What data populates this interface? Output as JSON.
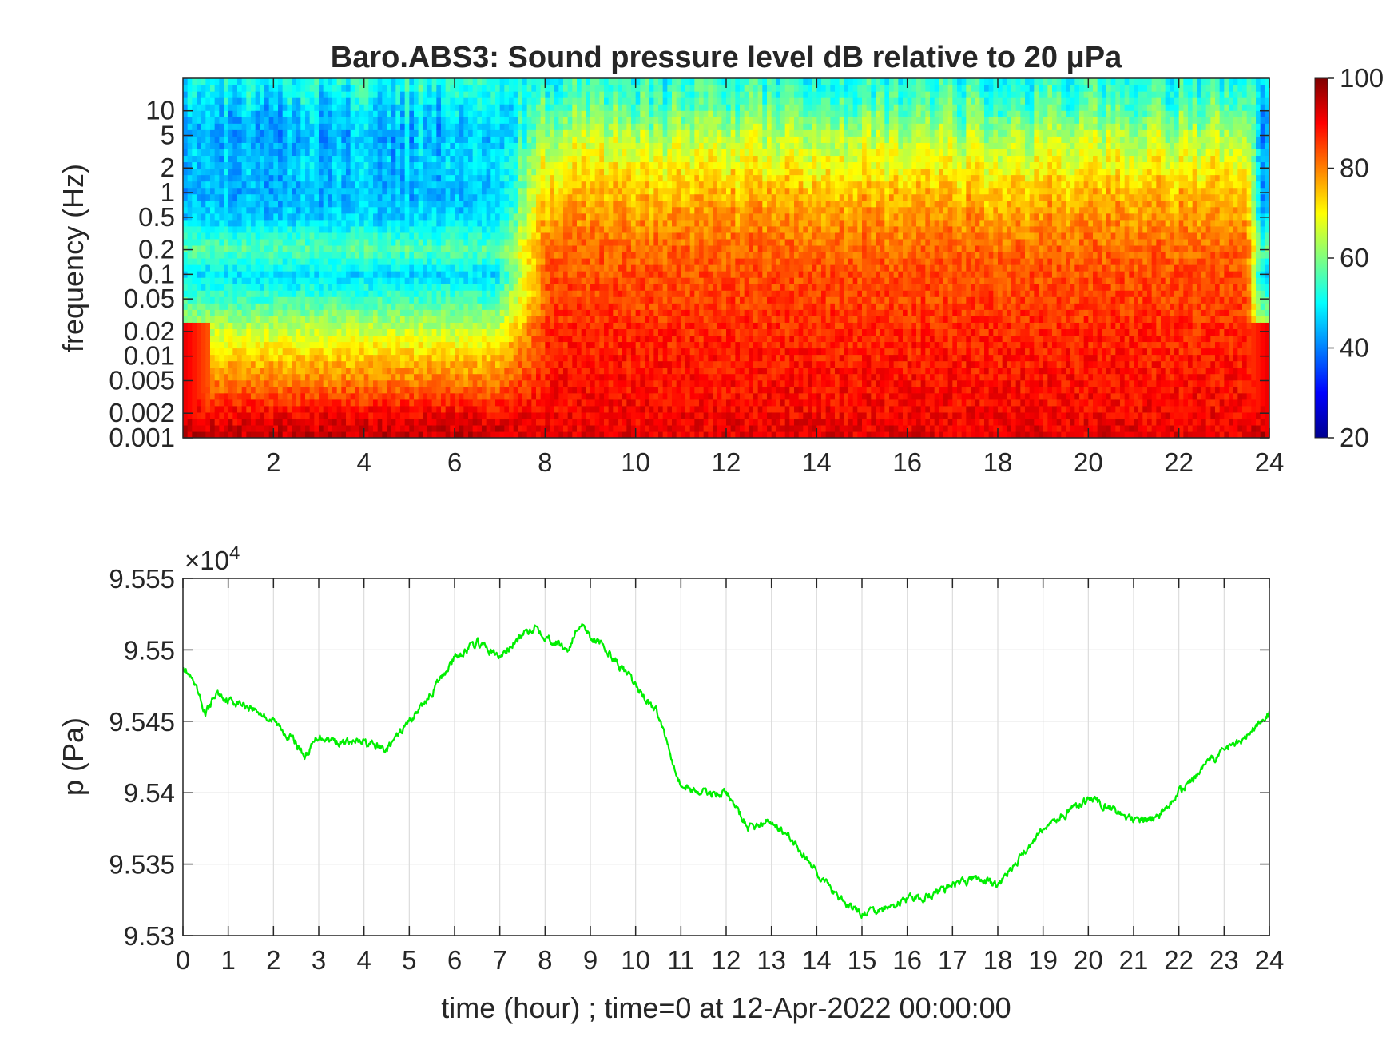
{
  "chart_data": [
    {
      "type": "heatmap",
      "title": "Baro.ABS3: Sound pressure level dB relative to 20 μPa",
      "ylabel": "frequency (Hz)",
      "xlabel": "",
      "x_tick_labels": [
        "2",
        "4",
        "6",
        "8",
        "10",
        "12",
        "14",
        "16",
        "18",
        "20",
        "22",
        "24"
      ],
      "x_ticks": [
        2,
        4,
        6,
        8,
        10,
        12,
        14,
        16,
        18,
        20,
        22,
        24
      ],
      "xlim": [
        0,
        24
      ],
      "y_scale": "log",
      "y_tick_labels": [
        "0.001",
        "0.002",
        "0.005",
        "0.01",
        "0.02",
        "0.05",
        "0.1",
        "0.2",
        "0.5",
        "1",
        "2",
        "5",
        "10"
      ],
      "y_ticks": [
        0.001,
        0.002,
        0.005,
        0.01,
        0.02,
        0.05,
        0.1,
        0.2,
        0.5,
        1,
        2,
        5,
        10
      ],
      "ylim": [
        0.001,
        25
      ],
      "colormap": "jet",
      "colorbar": {
        "tick_labels": [
          "20",
          "40",
          "60",
          "80",
          "100"
        ],
        "ticks": [
          20,
          40,
          60,
          80,
          100
        ],
        "range": [
          20,
          100
        ]
      },
      "level_profile": {
        "log10_freq": [
          -3.0,
          -2.7,
          -2.3,
          -2.0,
          -1.7,
          -1.3,
          -1.0,
          -0.7,
          -0.3,
          0.0,
          0.3,
          0.7,
          1.0,
          1.4
        ],
        "quiet_period_db": [
          95,
          90,
          80,
          74,
          66,
          55,
          47,
          57,
          47,
          44,
          46,
          44,
          47,
          52
        ],
        "active_period_db": [
          92,
          90,
          89,
          88,
          87,
          85,
          84,
          82,
          78,
          75,
          70,
          64,
          57,
          52
        ]
      },
      "active_period_hours": [
        7.5,
        23.5
      ]
    },
    {
      "type": "line",
      "xlabel": "time (hour) ; time=0 at 12-Apr-2022 00:00:00",
      "ylabel": "p (Pa)",
      "exponent_label": "×10",
      "exponent_power": "4",
      "xlim": [
        0,
        24
      ],
      "ylim": [
        95300,
        95550
      ],
      "x_ticks": [
        0,
        1,
        2,
        3,
        4,
        5,
        6,
        7,
        8,
        9,
        10,
        11,
        12,
        13,
        14,
        15,
        16,
        17,
        18,
        19,
        20,
        21,
        22,
        23,
        24
      ],
      "x_tick_labels": [
        "0",
        "1",
        "2",
        "3",
        "4",
        "5",
        "6",
        "7",
        "8",
        "9",
        "10",
        "11",
        "12",
        "13",
        "14",
        "15",
        "16",
        "17",
        "18",
        "19",
        "20",
        "21",
        "22",
        "23",
        "24"
      ],
      "y_ticks": [
        95300,
        95350,
        95400,
        95450,
        95500,
        95550
      ],
      "y_tick_labels": [
        "9.53",
        "9.535",
        "9.54",
        "9.545",
        "9.55",
        "9.555"
      ],
      "grid": true,
      "color": "#00ee00",
      "x": [
        0,
        0.25,
        0.5,
        0.75,
        1,
        1.5,
        2,
        2.5,
        2.7,
        3,
        3.5,
        4,
        4.5,
        5,
        5.5,
        6,
        6.5,
        7,
        7.5,
        7.8,
        8,
        8.5,
        8.8,
        9,
        9.5,
        10,
        10.5,
        11,
        11.5,
        12,
        12.5,
        13,
        13.5,
        14,
        14.5,
        15,
        15.5,
        16,
        16.5,
        17,
        17.5,
        18,
        18.5,
        19,
        19.5,
        20,
        20.5,
        21,
        21.5,
        22,
        22.5,
        23,
        23.5,
        24
      ],
      "y": [
        95490,
        95475,
        95455,
        95470,
        95465,
        95460,
        95450,
        95435,
        95425,
        95440,
        95435,
        95435,
        95430,
        95450,
        95470,
        95495,
        95505,
        95495,
        95510,
        95517,
        95510,
        95500,
        95520,
        95510,
        95495,
        95475,
        95455,
        95405,
        95400,
        95400,
        95375,
        95380,
        95365,
        95345,
        95325,
        95315,
        95318,
        95325,
        95328,
        95335,
        95340,
        95335,
        95355,
        95375,
        95385,
        95395,
        95390,
        95380,
        95382,
        95400,
        95415,
        95430,
        95440,
        95455
      ]
    }
  ]
}
